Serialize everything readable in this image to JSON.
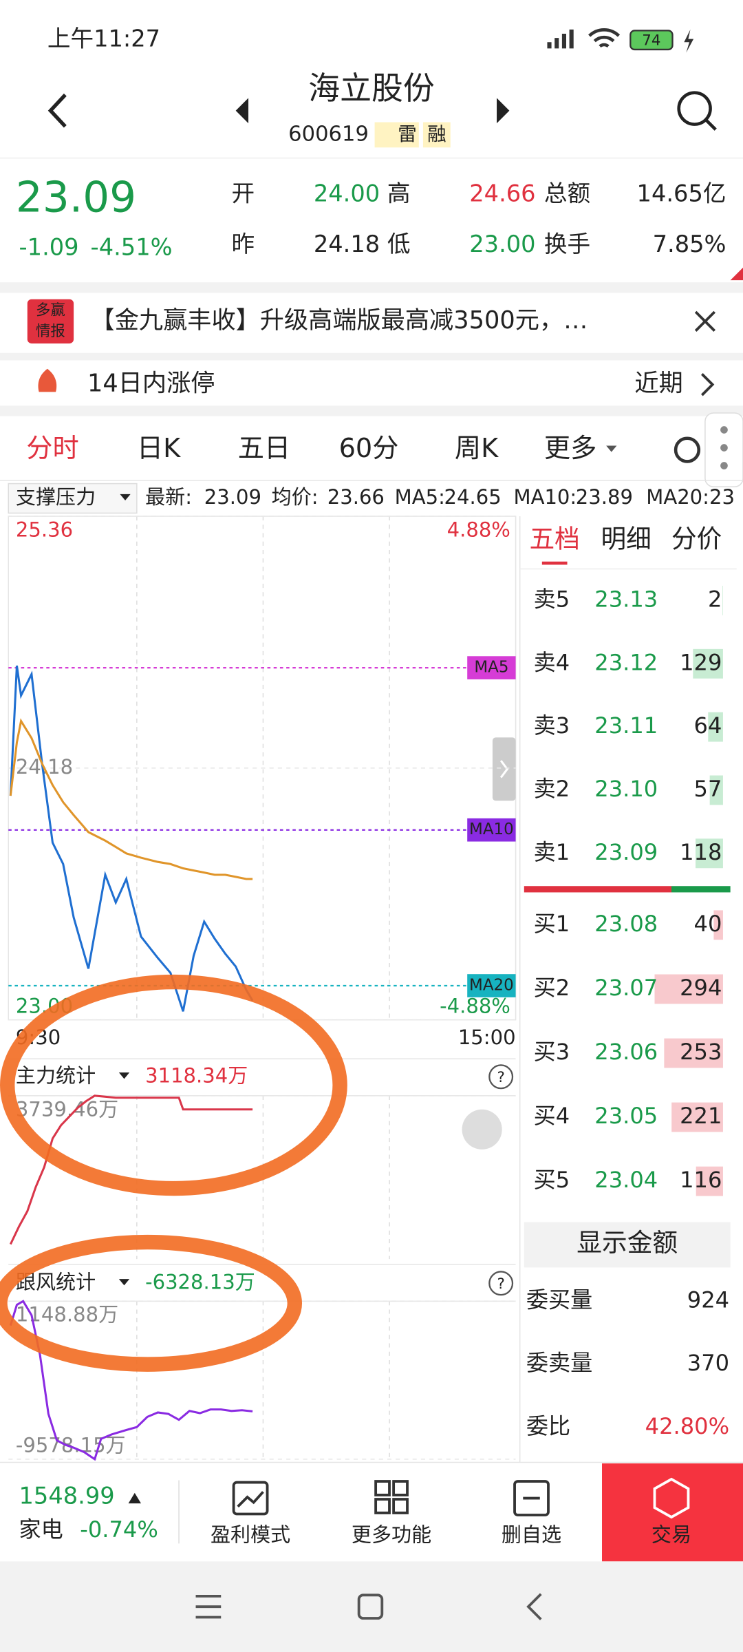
{
  "status_bar": {
    "time": "上午11:27",
    "battery": "74"
  },
  "header": {
    "title": "海立股份",
    "code": "600619",
    "tags": [
      "雷",
      "融"
    ]
  },
  "quote": {
    "price": "23.09",
    "change": "-1.09",
    "change_pct": "-4.51%",
    "fields": [
      [
        "开",
        "24.00"
      ],
      [
        "高",
        "24.66"
      ],
      [
        "总额",
        "14.65亿"
      ],
      [
        "昨",
        "24.18"
      ],
      [
        "低",
        "23.00"
      ],
      [
        "换手",
        "7.85%"
      ]
    ]
  },
  "banner": {
    "logo": [
      "多赢",
      "情报"
    ],
    "text": "【金九赢丰收】升级高端版最高减3500元，…"
  },
  "notice": {
    "text": "14日内涨停",
    "link": "近期"
  },
  "tabs": [
    "分时",
    "日K",
    "五日",
    "60分",
    "周K",
    "更多"
  ],
  "indicator": {
    "name": "支撑压力",
    "items": [
      {
        "label": "最新:",
        "value": "23.09"
      },
      {
        "label": "均价:",
        "value": "23.66"
      },
      {
        "label": "MA5:",
        "value": "24.65"
      },
      {
        "label": "MA10:",
        "value": "23.89"
      },
      {
        "label": "MA20:",
        "value": "23"
      }
    ]
  },
  "chart_data": [
    {
      "type": "line",
      "x": [
        0,
        3,
        5,
        10,
        15,
        20,
        25,
        30,
        37,
        45,
        50,
        55,
        62,
        70,
        76,
        82,
        87,
        92,
        97,
        102,
        107,
        112,
        115
      ],
      "series": [
        {
          "name": "最新:",
          "color": "#1f6fd1",
          "values": [
            24.05,
            24.66,
            24.52,
            24.62,
            24.2,
            23.83,
            23.73,
            23.48,
            23.24,
            23.68,
            23.55,
            23.66,
            23.39,
            23.29,
            23.22,
            23.04,
            23.3,
            23.46,
            23.38,
            23.31,
            23.25,
            23.14,
            23.09
          ]
        },
        {
          "name": "均价:",
          "color": "#e0952a",
          "values": [
            24.05,
            24.3,
            24.4,
            24.32,
            24.2,
            24.1,
            24.02,
            23.96,
            23.88,
            23.84,
            23.81,
            23.78,
            23.76,
            23.74,
            23.73,
            23.71,
            23.7,
            23.69,
            23.68,
            23.68,
            23.67,
            23.66,
            23.66
          ]
        }
      ],
      "xlim": [
        0,
        240
      ],
      "xticks": [
        {
          "value": 0,
          "label": "9:30"
        },
        {
          "value": 240,
          "label": "15:00"
        }
      ],
      "ylim": [
        23,
        25.36
      ],
      "yticks": [
        25.36,
        24.18,
        {
          "value": 23,
          "label": "23.00"
        }
      ],
      "y2lim": [
        -4.88,
        4.88
      ],
      "y2ticks": [
        {
          "value": 4.88,
          "label": "4.88%"
        },
        {
          "value": -4.88,
          "label": "-4.88%"
        }
      ],
      "reference_lines": [
        {
          "label": "MA5",
          "value": 24.65,
          "color": "#d63cd6"
        },
        {
          "label": "MA10",
          "value": 23.89,
          "color": "#8a2be2"
        },
        {
          "label": "MA20",
          "value": 23.16,
          "color": "#17b3c0"
        }
      ]
    },
    {
      "type": "line",
      "latest": "3118.34万",
      "x": [
        0,
        4,
        8,
        12,
        16,
        20,
        24,
        28,
        32,
        36,
        40,
        50,
        60,
        70,
        80,
        82,
        95,
        105,
        115
      ],
      "series": [
        {
          "name": "主力统计",
          "color": "#d9364a",
          "values": [
            -3000,
            -2200,
            -1500,
            -400,
            500,
            1800,
            2400,
            2800,
            3200,
            3500,
            3739.46,
            3650,
            3650,
            3650,
            3650,
            3118.34,
            3118.34,
            3118.34,
            3118.34
          ]
        }
      ],
      "xlim": [
        0,
        240
      ],
      "ylim": [
        -3670,
        3739.46
      ],
      "yticks": [
        {
          "value": 3739.46,
          "label": "3739.46万"
        }
      ]
    },
    {
      "type": "line",
      "latest": "-6328.13万",
      "x": [
        0,
        3,
        6,
        10,
        14,
        18,
        22,
        26,
        30,
        35,
        40,
        43,
        48,
        55,
        60,
        65,
        70,
        75,
        80,
        85,
        90,
        95,
        100,
        105,
        110,
        115
      ],
      "series": [
        {
          "name": "跟风统计",
          "color": "#8a2be2",
          "values": [
            -500,
            900,
            1148.88,
            200,
            -2500,
            -6500,
            -8300,
            -8600,
            -8800,
            -9100,
            -9578.15,
            -8200,
            -7900,
            -7600,
            -7400,
            -6700,
            -6400,
            -6500,
            -6900,
            -6300,
            -6450,
            -6200,
            -6200,
            -6300,
            -6250,
            -6328.13
          ]
        }
      ],
      "xlim": [
        0,
        240
      ],
      "ylim": [
        -9578.15,
        1148.88
      ],
      "yticks": [
        {
          "value": 1148.88,
          "label": "1148.88万"
        },
        {
          "value": -9578.15,
          "label": "-9578.15万"
        }
      ]
    }
  ],
  "order_book": {
    "tabs": [
      "五档",
      "明细",
      "分价"
    ],
    "asks": [
      {
        "label": "卖5",
        "price": "23.13",
        "volume": 2
      },
      {
        "label": "卖4",
        "price": "23.12",
        "volume": 129
      },
      {
        "label": "卖3",
        "price": "23.11",
        "volume": 64
      },
      {
        "label": "卖2",
        "price": "23.10",
        "volume": 57
      },
      {
        "label": "卖1",
        "price": "23.09",
        "volume": 118
      }
    ],
    "bids": [
      {
        "label": "买1",
        "price": "23.08",
        "volume": 40
      },
      {
        "label": "买2",
        "price": "23.07",
        "volume": 294
      },
      {
        "label": "买3",
        "price": "23.06",
        "volume": 253
      },
      {
        "label": "买4",
        "price": "23.05",
        "volume": 221
      },
      {
        "label": "买5",
        "price": "23.04",
        "volume": 116
      }
    ],
    "button": "显示金额",
    "stats": [
      [
        "委买量",
        "924"
      ],
      [
        "委卖量",
        "370"
      ],
      [
        "委比",
        "42.80%"
      ]
    ]
  },
  "bottom_bar": {
    "index_value": "1548.99",
    "index_name": "家电",
    "index_change": "-0.74%",
    "actions": [
      "盈利模式",
      "更多功能",
      "删自选",
      "交易"
    ]
  }
}
